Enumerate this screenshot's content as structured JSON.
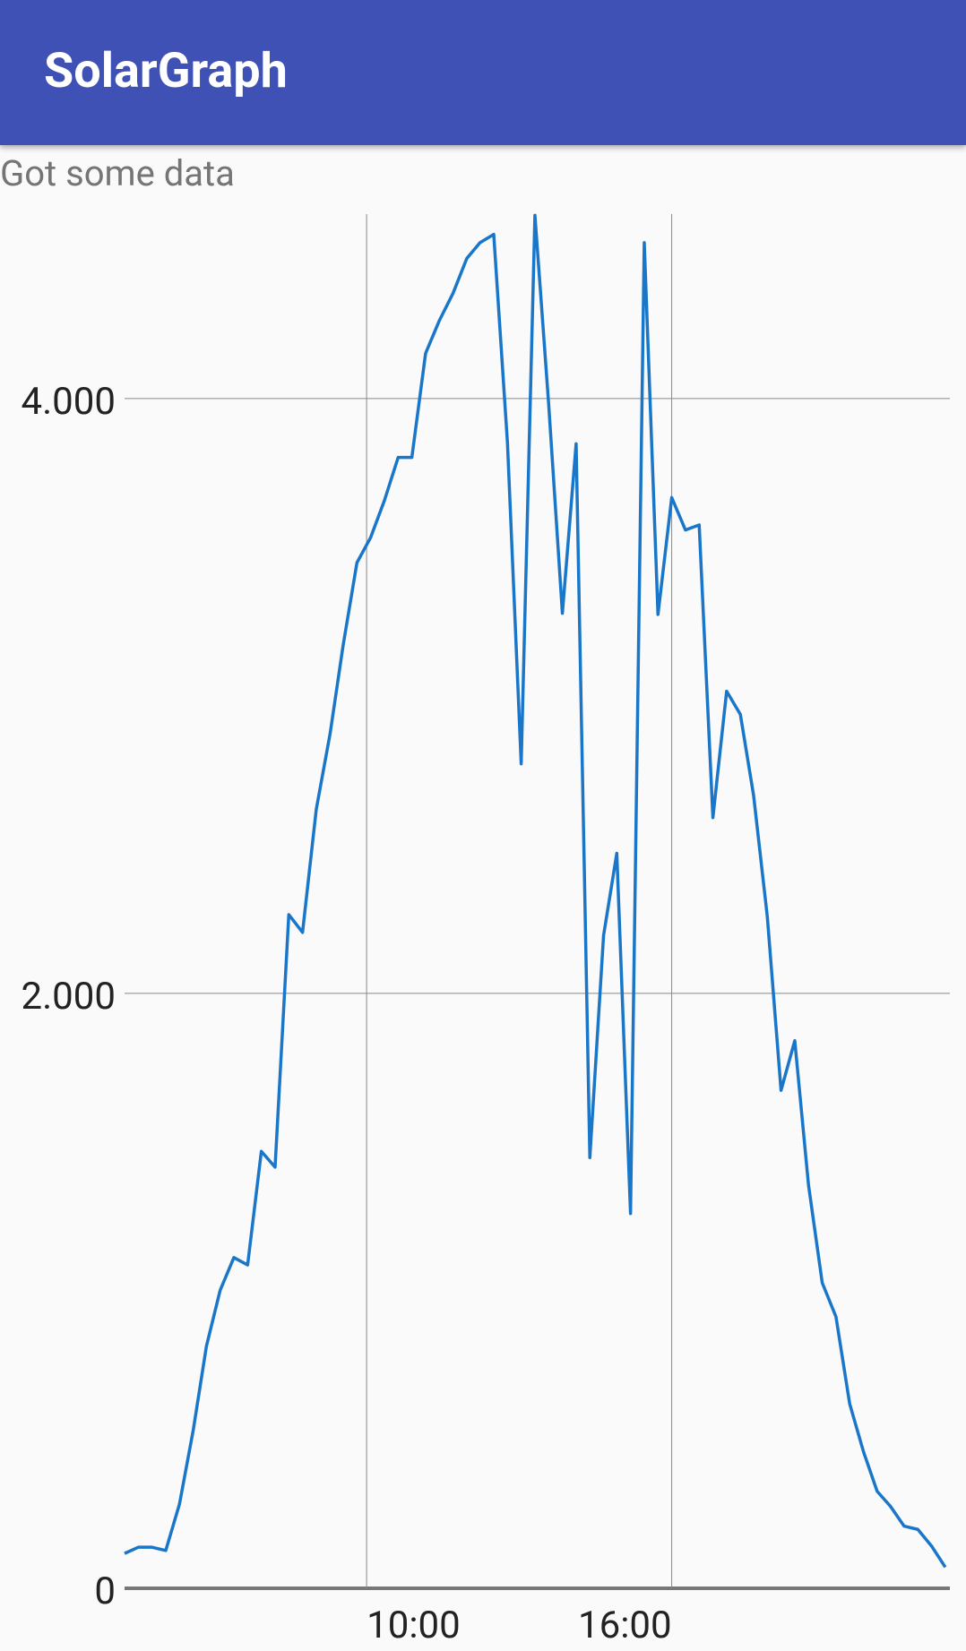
{
  "app_bar": {
    "title": "SolarGraph"
  },
  "status": "Got some data",
  "chart_data": {
    "type": "line",
    "x": [
      5.24,
      5.51,
      5.78,
      6.05,
      6.32,
      6.59,
      6.85,
      7.12,
      7.39,
      7.66,
      7.93,
      8.2,
      8.47,
      8.74,
      9.01,
      9.28,
      9.54,
      9.81,
      10.08,
      10.35,
      10.62,
      10.89,
      11.16,
      11.43,
      11.7,
      11.97,
      12.23,
      12.5,
      12.77,
      13.04,
      13.31,
      13.58,
      13.85,
      14.12,
      14.39,
      14.66,
      14.92,
      15.19,
      15.46,
      15.73,
      16.0,
      16.27,
      16.54,
      16.81,
      17.08,
      17.35,
      17.61,
      17.88,
      18.15,
      18.42,
      18.69,
      18.96,
      19.23,
      19.5,
      19.77,
      20.04,
      20.3,
      20.57,
      20.84,
      21.11,
      21.38
    ],
    "series": [
      {
        "color": "#1976c8",
        "values": [
          117,
          138,
          138,
          127,
          283,
          531,
          814,
          1002,
          1112,
          1087,
          1469,
          1416,
          2265,
          2205,
          2619,
          2871,
          3172,
          3448,
          3533,
          3657,
          3802,
          3802,
          4152,
          4262,
          4354,
          4471,
          4524,
          4552,
          3851,
          2772,
          4616,
          3982,
          3278,
          3848,
          1448,
          2195,
          2471,
          1260,
          4524,
          3274,
          3667,
          3558,
          3575,
          2591,
          3016,
          2938,
          2666,
          2258,
          1674,
          1841,
          1356,
          1027,
          913,
          620,
          460,
          326,
          276,
          209,
          198,
          142,
          71
        ]
      }
    ],
    "xlim": [
      5.24,
      21.47
    ],
    "xticks": [
      {
        "value": 10,
        "label": "10:00"
      },
      {
        "value": 16,
        "label": "16:00"
      }
    ],
    "ylim": [
      0,
      4620
    ],
    "yticks": [
      0,
      {
        "value": 2000,
        "label": "2.000"
      },
      {
        "value": 4000,
        "label": "4.000"
      }
    ],
    "grid": true
  }
}
